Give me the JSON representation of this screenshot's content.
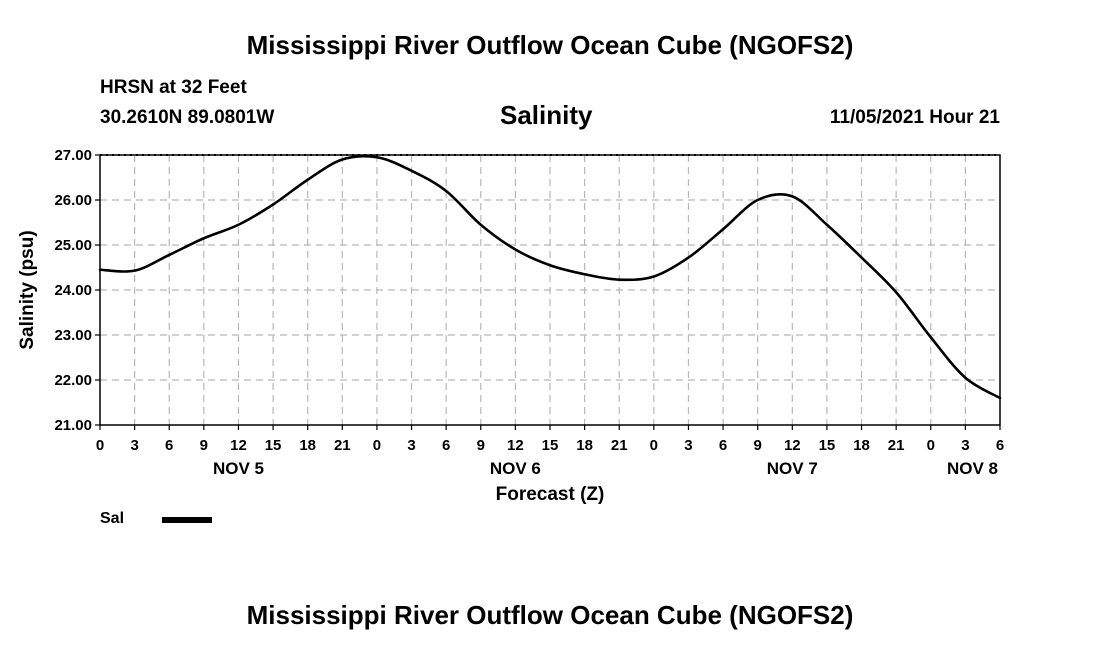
{
  "header": {
    "title": "Mississippi River Outflow Ocean Cube (NGOFS2)",
    "station": "HRSN at 32 Feet",
    "coords": "30.2610N  89.0801W",
    "parameter": "Salinity",
    "timestamp": "11/05/2021 Hour 21"
  },
  "footer": {
    "title": "Mississippi River Outflow Ocean Cube (NGOFS2)"
  },
  "legend": {
    "label": "Sal",
    "color": "#000000"
  },
  "chart_data": {
    "type": "line",
    "title": "Salinity",
    "xlabel": "Forecast (Z)",
    "ylabel": "Salinity (psu)",
    "ylim": [
      21,
      27
    ],
    "xlim": [
      0,
      78
    ],
    "grid": true,
    "x_tick_labels": [
      "0",
      "3",
      "6",
      "9",
      "12",
      "15",
      "18",
      "21",
      "0",
      "3",
      "6",
      "9",
      "12",
      "15",
      "18",
      "21",
      "0",
      "3",
      "6",
      "9",
      "12",
      "15",
      "18",
      "21",
      "0",
      "3",
      "6"
    ],
    "y_tick_labels": [
      "21.00",
      "22.00",
      "23.00",
      "24.00",
      "25.00",
      "26.00",
      "27.00"
    ],
    "date_labels": [
      {
        "label": "NOV 5",
        "hour": 12
      },
      {
        "label": "NOV 6",
        "hour": 36
      },
      {
        "label": "NOV 7",
        "hour": 60
      },
      {
        "label": "NOV 8",
        "hour": 78
      }
    ],
    "series": [
      {
        "name": "Sal",
        "x": [
          0,
          3,
          6,
          9,
          12,
          15,
          18,
          21,
          24,
          27,
          30,
          33,
          36,
          39,
          42,
          45,
          48,
          51,
          54,
          57,
          60,
          63,
          66,
          69,
          72,
          75,
          78
        ],
        "values": [
          24.45,
          24.43,
          24.78,
          25.15,
          25.45,
          25.9,
          26.45,
          26.9,
          26.95,
          26.65,
          26.2,
          25.45,
          24.9,
          24.55,
          24.35,
          24.23,
          24.3,
          24.72,
          25.35,
          26.0,
          26.08,
          25.45,
          24.72,
          23.95,
          22.95,
          22.05,
          21.6
        ]
      }
    ]
  }
}
